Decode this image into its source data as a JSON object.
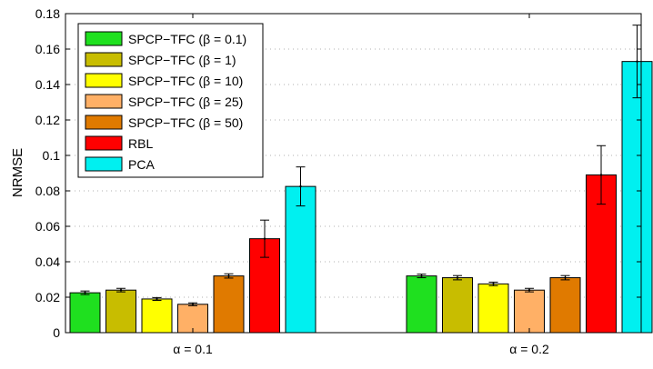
{
  "chart_data": {
    "type": "bar",
    "title": "",
    "xlabel": "",
    "ylabel": "NRMSE",
    "ylim": [
      0,
      0.18
    ],
    "yticks": [
      "0",
      "0.02",
      "0.04",
      "0.06",
      "0.08",
      "0.1",
      "0.12",
      "0.14",
      "0.16",
      "0.18"
    ],
    "ytick_values": [
      0,
      0.02,
      0.04,
      0.06,
      0.08,
      0.1,
      0.12,
      0.14,
      0.16,
      0.18
    ],
    "categories": [
      "α = 0.1",
      "α = 0.2"
    ],
    "grid": "horizontal dotted",
    "legend_position": "top-left",
    "series": [
      {
        "name": "SPCP−TFC (β = 0.1)",
        "color": "#1fe01f",
        "values": [
          0.0225,
          0.032
        ],
        "errors": [
          0.001,
          0.001
        ]
      },
      {
        "name": "SPCP−TFC (β = 1)",
        "color": "#c8bd00",
        "values": [
          0.024,
          0.031
        ],
        "errors": [
          0.001,
          0.0012
        ]
      },
      {
        "name": "SPCP−TFC (β = 10)",
        "color": "#ffff00",
        "values": [
          0.019,
          0.0275
        ],
        "errors": [
          0.0008,
          0.001
        ]
      },
      {
        "name": "SPCP−TFC (β = 25)",
        "color": "#ffb066",
        "values": [
          0.016,
          0.024
        ],
        "errors": [
          0.0008,
          0.001
        ]
      },
      {
        "name": "SPCP−TFC (β = 50)",
        "color": "#e07a00",
        "values": [
          0.032,
          0.031
        ],
        "errors": [
          0.0012,
          0.0012
        ]
      },
      {
        "name": "RBL",
        "color": "#ff0000",
        "values": [
          0.053,
          0.089
        ],
        "errors": [
          0.0105,
          0.0165
        ]
      },
      {
        "name": "PCA",
        "color": "#00f0f0",
        "values": [
          0.0825,
          0.153
        ],
        "errors": [
          0.011,
          0.0205
        ]
      }
    ]
  }
}
